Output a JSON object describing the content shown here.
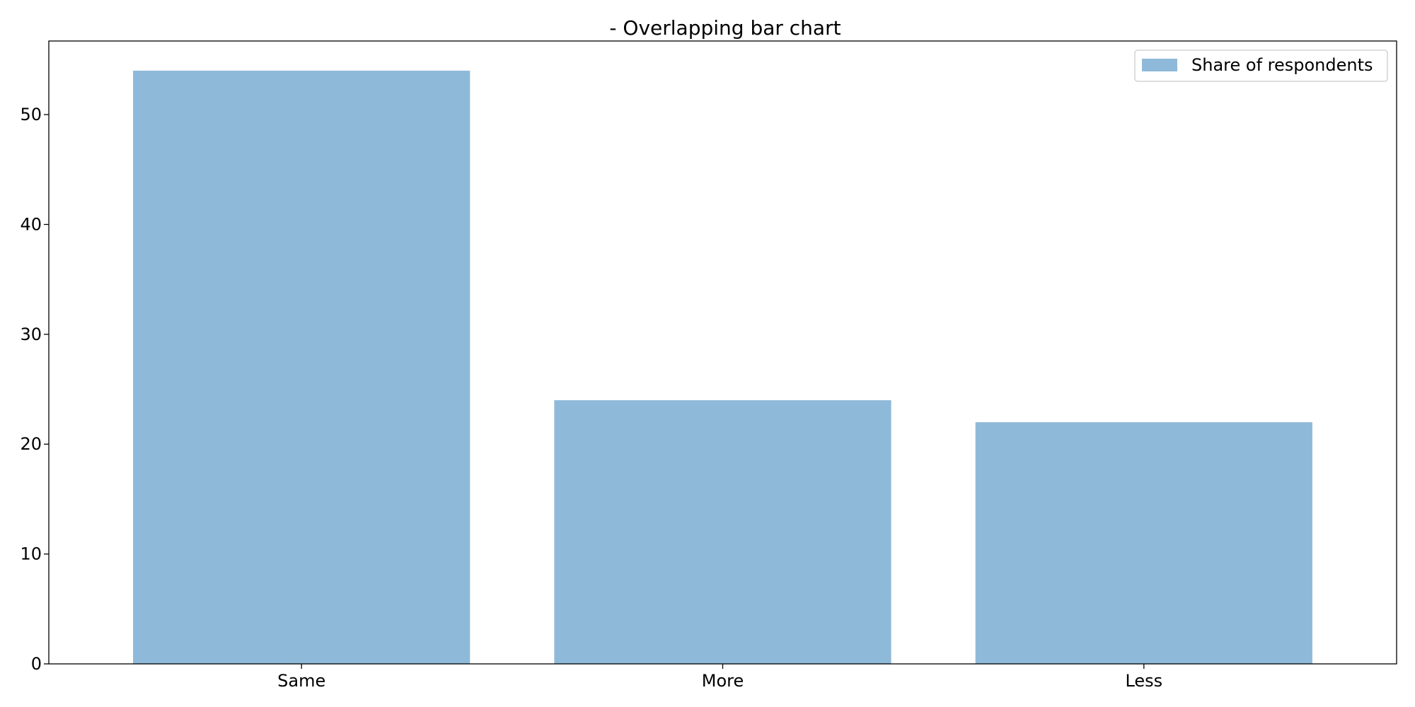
{
  "chart_data": {
    "type": "bar",
    "title": "- Overlapping bar chart",
    "xlabel": "",
    "ylabel": "",
    "categories": [
      "Same",
      "More",
      "Less"
    ],
    "series": [
      {
        "name": "Share of respondents",
        "values": [
          54,
          24,
          22
        ],
        "color": "#8fb9d9"
      }
    ],
    "ylim": [
      0,
      56.7
    ],
    "yticks": [
      0,
      10,
      20,
      30,
      40,
      50
    ],
    "grid": false,
    "legend_position": "top-right"
  }
}
